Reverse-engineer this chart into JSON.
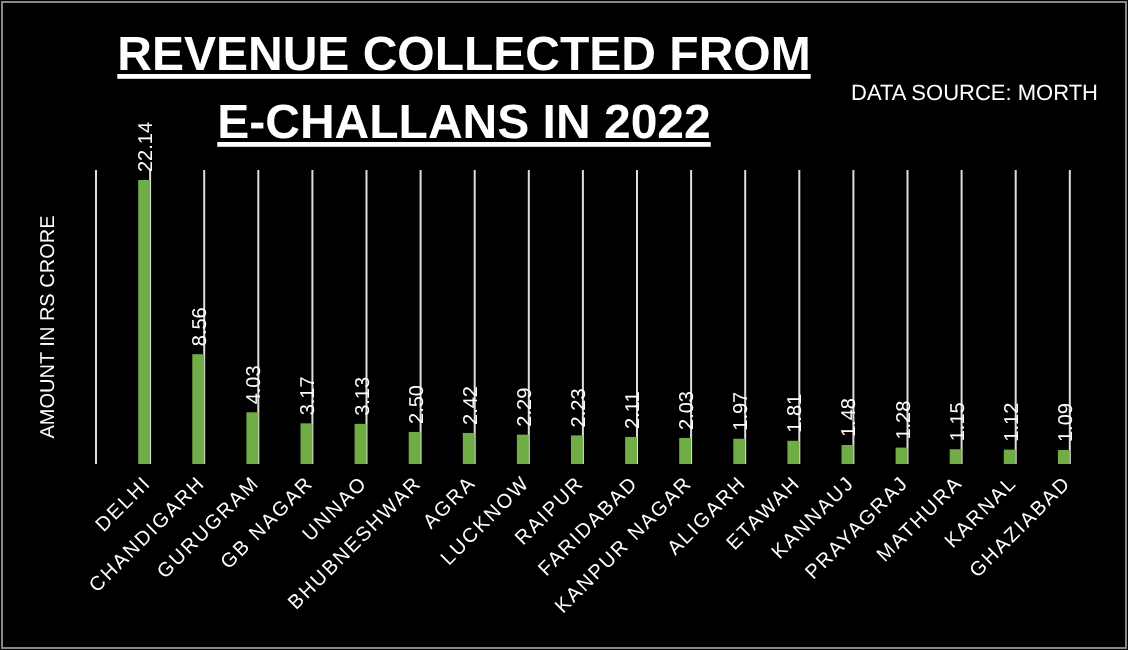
{
  "chart_data": {
    "type": "bar",
    "title": "REVENUE COLLECTED FROM E-CHALLANS IN 2022",
    "ylabel": "AMOUNT IN RS CRORE",
    "annotations": [
      "DATA SOURCE: MORTH"
    ],
    "categories": [
      "DELHI",
      "CHANDIGARH",
      "GURUGRAM",
      "GB NAGAR",
      "UNNAO",
      "BHUBNESHWAR",
      "AGRA",
      "LUCKNOW",
      "RAIPUR",
      "FARIDABAD",
      "KANPUR NAGAR",
      "ALIGARH",
      "ETAWAH",
      "KANNAUJ",
      "PRAYAGRAJ",
      "MATHURA",
      "KARNAL",
      "GHAZIABAD"
    ],
    "values": [
      22.14,
      8.56,
      4.03,
      3.17,
      3.13,
      2.5,
      2.42,
      2.29,
      2.23,
      2.11,
      2.03,
      1.97,
      1.81,
      1.48,
      1.28,
      1.15,
      1.12,
      1.09
    ],
    "value_labels": [
      "22.14",
      "8.56",
      "4.03",
      "3.17",
      "3.13",
      "2.50",
      "2.42",
      "2.29",
      "2.23",
      "2.11",
      "2.03",
      "1.97",
      "1.81",
      "1.48",
      "1.28",
      "1.15",
      "1.12",
      "1.09"
    ],
    "color": "#70ad47",
    "grid": "x"
  }
}
